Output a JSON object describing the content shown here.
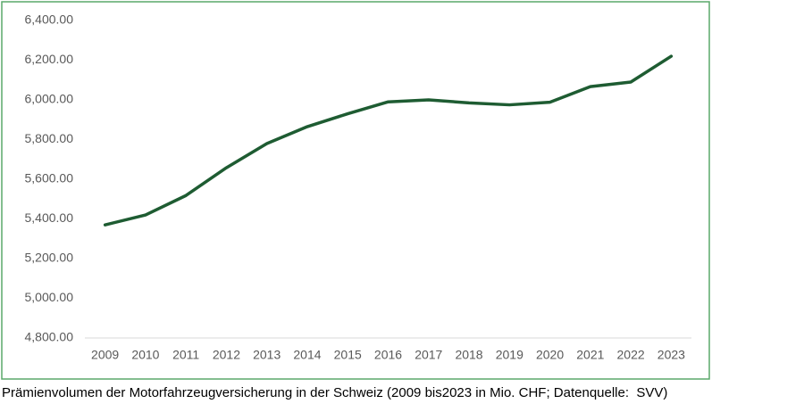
{
  "chart_data": {
    "type": "line",
    "caption": "Prämienvolumen der Motorfahrzeugversicherung in der Schweiz (2009 bis2023 in Mio. CHF; Datenquelle:  SVV)",
    "categories": [
      "2009",
      "2010",
      "2011",
      "2012",
      "2013",
      "2014",
      "2015",
      "2016",
      "2017",
      "2018",
      "2019",
      "2020",
      "2021",
      "2022",
      "2023"
    ],
    "values": [
      5370,
      5420,
      5518,
      5658,
      5780,
      5865,
      5930,
      5990,
      6000,
      5985,
      5975,
      5988,
      6067,
      6090,
      6220
    ],
    "color": "#1e5c32",
    "ylim": [
      4800,
      6400
    ],
    "yticks": [
      {
        "value": 4800,
        "label": "4,800.00"
      },
      {
        "value": 5000,
        "label": "5,000.00"
      },
      {
        "value": 5200,
        "label": "5,200.00"
      },
      {
        "value": 5400,
        "label": "5,400.00"
      },
      {
        "value": 5600,
        "label": "5,600.00"
      },
      {
        "value": 5800,
        "label": "5,800.00"
      },
      {
        "value": 6000,
        "label": "6,000.00"
      },
      {
        "value": 6200,
        "label": "6,200.00"
      },
      {
        "value": 6400,
        "label": "6,400.00"
      }
    ],
    "grid": false
  }
}
